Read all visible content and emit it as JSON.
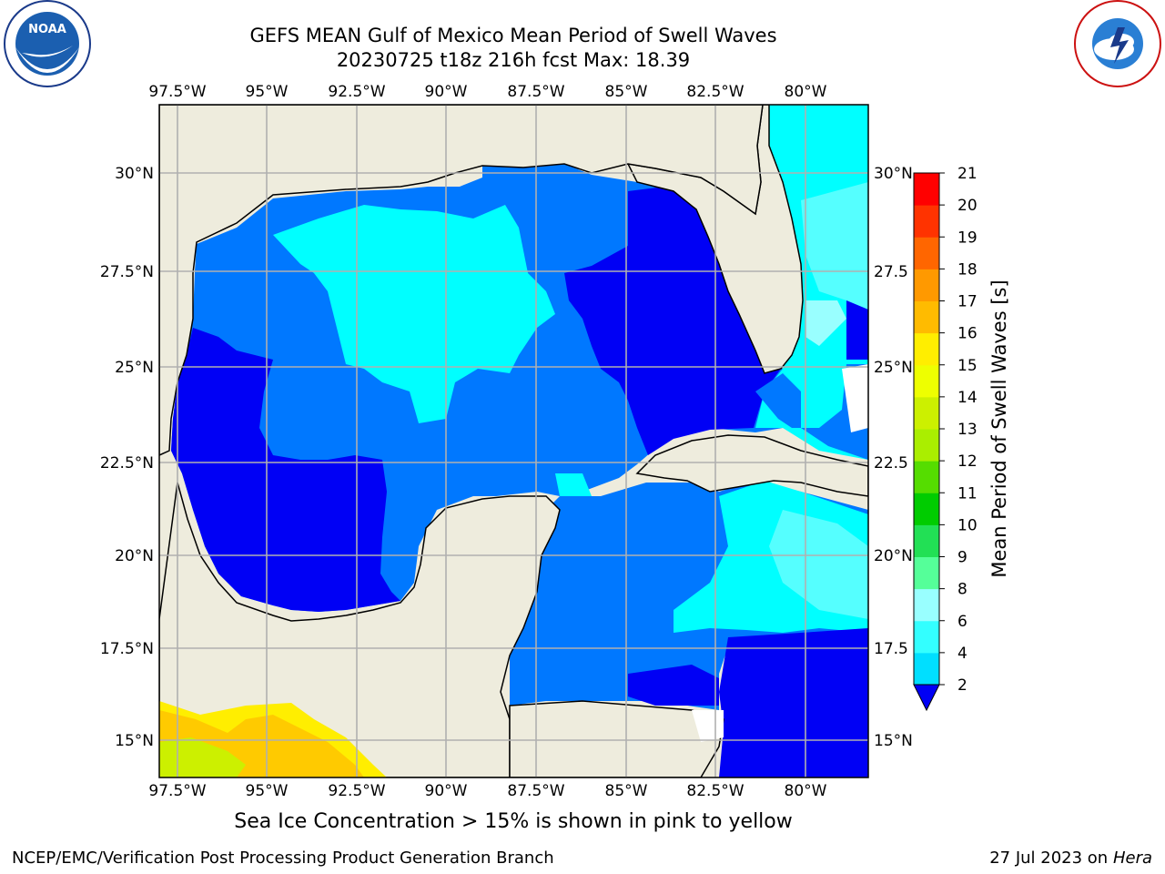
{
  "title_line1": "GEFS MEAN Gulf of Mexico Mean Period of Swell Waves",
  "title_line2": "20230725 t18z 216h fcst   Max: 18.39",
  "note": "Sea Ice Concentration > 15% is shown in pink to yellow",
  "footer_left": "NCEP/EMC/Verification Post Processing Product Generation Branch",
  "footer_date": "27 Jul 2023 on ",
  "footer_host": "Hera",
  "logos": {
    "left": "noaa-logo",
    "right": "nws-logo"
  },
  "map": {
    "lon_labels": [
      "97.5°W",
      "95°W",
      "92.5°W",
      "90°W",
      "87.5°W",
      "85°W",
      "82.5°W",
      "80°W"
    ],
    "lat_labels_left": [
      "30°N",
      "27.5°N",
      "25°N",
      "22.5°N",
      "20°N",
      "17.5°N",
      "15°N"
    ],
    "lat_labels_right": [
      "30°N",
      "27.5",
      "25°N",
      "22.5",
      "20°N",
      "17.5",
      "15°N"
    ],
    "colors": {
      "land": "#eeecdd",
      "ocean_deep": "#0000f5",
      "ocean_mid": "#0078ff",
      "ocean_light": "#00ffff",
      "grid": "#b0b0b0"
    }
  },
  "colorbar": {
    "label": "Mean Period of Swell Waves [s]",
    "ticks": [
      "2",
      "4",
      "6",
      "8",
      "9",
      "10",
      "11",
      "12",
      "13",
      "14",
      "15",
      "16",
      "17",
      "18",
      "19",
      "20",
      "21"
    ],
    "colors": [
      "#0078ff",
      "#00dfff",
      "#33ffff",
      "#99ffff",
      "#55ff99",
      "#22e055",
      "#00cc00",
      "#55dd00",
      "#aaee00",
      "#ccf000",
      "#eeff00",
      "#ffee00",
      "#ffbb00",
      "#ff9900",
      "#ff6600",
      "#ff3300",
      "#ff0000"
    ],
    "underflow_color": "#0000f5"
  }
}
